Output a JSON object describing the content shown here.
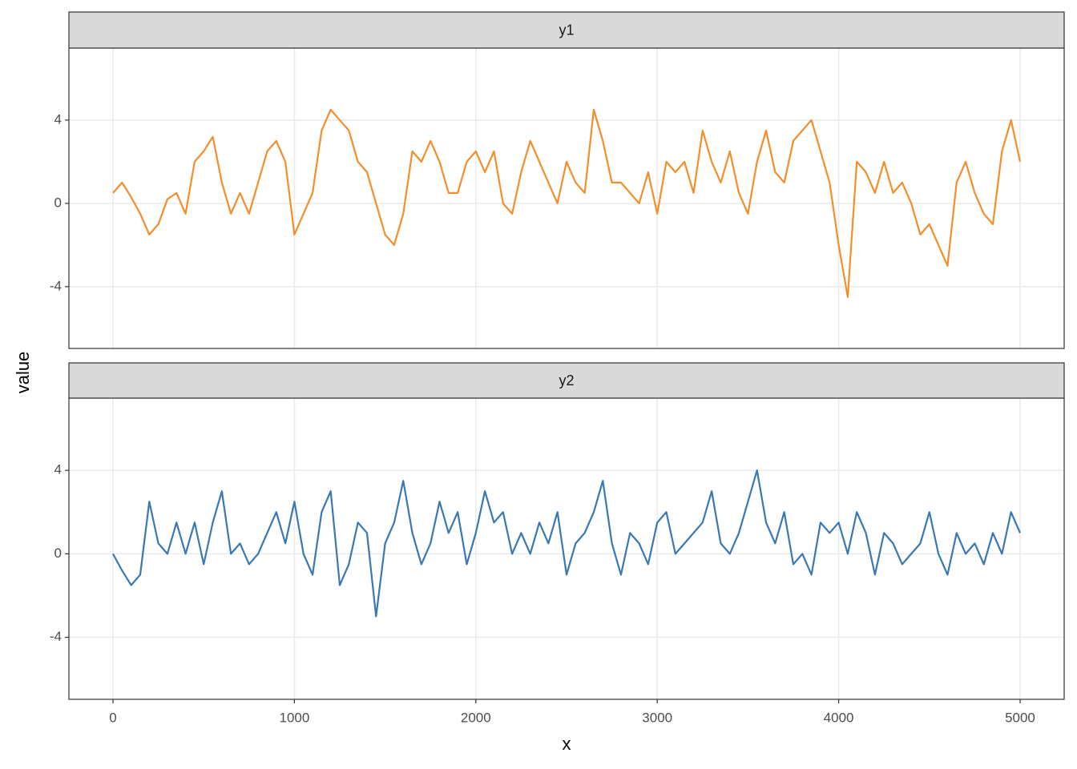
{
  "chart_data": {
    "type": "line",
    "x_label": "x",
    "y_label": "value",
    "facet": true,
    "grid": true,
    "x": [
      0,
      50,
      100,
      150,
      200,
      250,
      300,
      350,
      400,
      450,
      500,
      550,
      600,
      650,
      700,
      750,
      800,
      850,
      900,
      950,
      1000,
      1050,
      1100,
      1150,
      1200,
      1250,
      1300,
      1350,
      1400,
      1450,
      1500,
      1550,
      1600,
      1650,
      1700,
      1750,
      1800,
      1850,
      1900,
      1950,
      2000,
      2050,
      2100,
      2150,
      2200,
      2250,
      2300,
      2350,
      2400,
      2450,
      2500,
      2550,
      2600,
      2650,
      2700,
      2750,
      2800,
      2850,
      2900,
      2950,
      3000,
      3050,
      3100,
      3150,
      3200,
      3250,
      3300,
      3350,
      3400,
      3450,
      3500,
      3550,
      3600,
      3650,
      3700,
      3750,
      3800,
      3850,
      3900,
      3950,
      4000,
      4050,
      4100,
      4150,
      4200,
      4250,
      4300,
      4350,
      4400,
      4450,
      4500,
      4550,
      4600,
      4650,
      4700,
      4750,
      4800,
      4850,
      4900,
      4950,
      5000
    ],
    "series": [
      {
        "name": "y1",
        "color": "#f28e2b",
        "values": [
          0.5,
          1.0,
          0.3,
          -0.5,
          -1.5,
          -1.0,
          0.2,
          0.5,
          -0.5,
          2.0,
          2.5,
          3.2,
          1.0,
          -0.5,
          0.5,
          -0.5,
          1.0,
          2.5,
          3.0,
          2.0,
          -1.5,
          -0.5,
          0.5,
          3.5,
          4.5,
          4.0,
          3.5,
          2.0,
          1.5,
          0.0,
          -1.5,
          -2.0,
          -0.5,
          2.5,
          2.0,
          3.0,
          2.0,
          0.5,
          0.5,
          2.0,
          2.5,
          1.5,
          2.5,
          0.0,
          -0.5,
          1.5,
          3.0,
          2.0,
          1.0,
          0.0,
          2.0,
          1.0,
          0.5,
          4.5,
          3.0,
          1.0,
          1.0,
          0.5,
          0.0,
          1.5,
          -0.5,
          2.0,
          1.5,
          2.0,
          0.5,
          3.5,
          2.0,
          1.0,
          2.5,
          0.5,
          -0.5,
          2.0,
          3.5,
          1.5,
          1.0,
          3.0,
          3.5,
          4.0,
          2.5,
          1.0,
          -2.0,
          -4.5,
          2.0,
          1.5,
          0.5,
          2.0,
          0.5,
          1.0,
          0.0,
          -1.5,
          -1.0,
          -2.0,
          -3.0,
          1.0,
          2.0,
          0.5,
          -0.5,
          -1.0,
          2.5,
          4.0,
          2.0
        ]
      },
      {
        "name": "y2",
        "color": "#3a78b4",
        "values": [
          0.0,
          -0.8,
          -1.5,
          -1.0,
          2.5,
          0.5,
          0.0,
          1.5,
          0.0,
          1.5,
          -0.5,
          1.5,
          3.0,
          0.0,
          0.5,
          -0.5,
          0.0,
          1.0,
          2.0,
          0.5,
          2.5,
          0.0,
          -1.0,
          2.0,
          3.0,
          -1.5,
          -0.5,
          1.5,
          1.0,
          -3.0,
          0.5,
          1.5,
          3.5,
          1.0,
          -0.5,
          0.5,
          2.5,
          1.0,
          2.0,
          -0.5,
          1.0,
          3.0,
          1.5,
          2.0,
          0.0,
          1.0,
          0.0,
          1.5,
          0.5,
          2.0,
          -1.0,
          0.5,
          1.0,
          2.0,
          3.5,
          0.5,
          -1.0,
          1.0,
          0.5,
          -0.5,
          1.5,
          2.0,
          0.0,
          0.5,
          1.0,
          1.5,
          3.0,
          0.5,
          0.0,
          1.0,
          2.5,
          4.0,
          1.5,
          0.5,
          2.0,
          -0.5,
          0.0,
          -1.0,
          1.5,
          1.0,
          1.5,
          0.0,
          2.0,
          1.0,
          -1.0,
          1.0,
          0.5,
          -0.5,
          0.0,
          0.5,
          2.0,
          0.0,
          -1.0,
          1.0,
          0.0,
          0.5,
          -0.5,
          1.0,
          0.0,
          2.0,
          1.0
        ]
      }
    ],
    "xlim": [
      -243,
      5243
    ],
    "xticks": [
      0,
      1000,
      2000,
      3000,
      4000,
      5000
    ],
    "ylim": [
      -6.97,
      7.46
    ],
    "yticks": [
      -4,
      0,
      4
    ]
  }
}
